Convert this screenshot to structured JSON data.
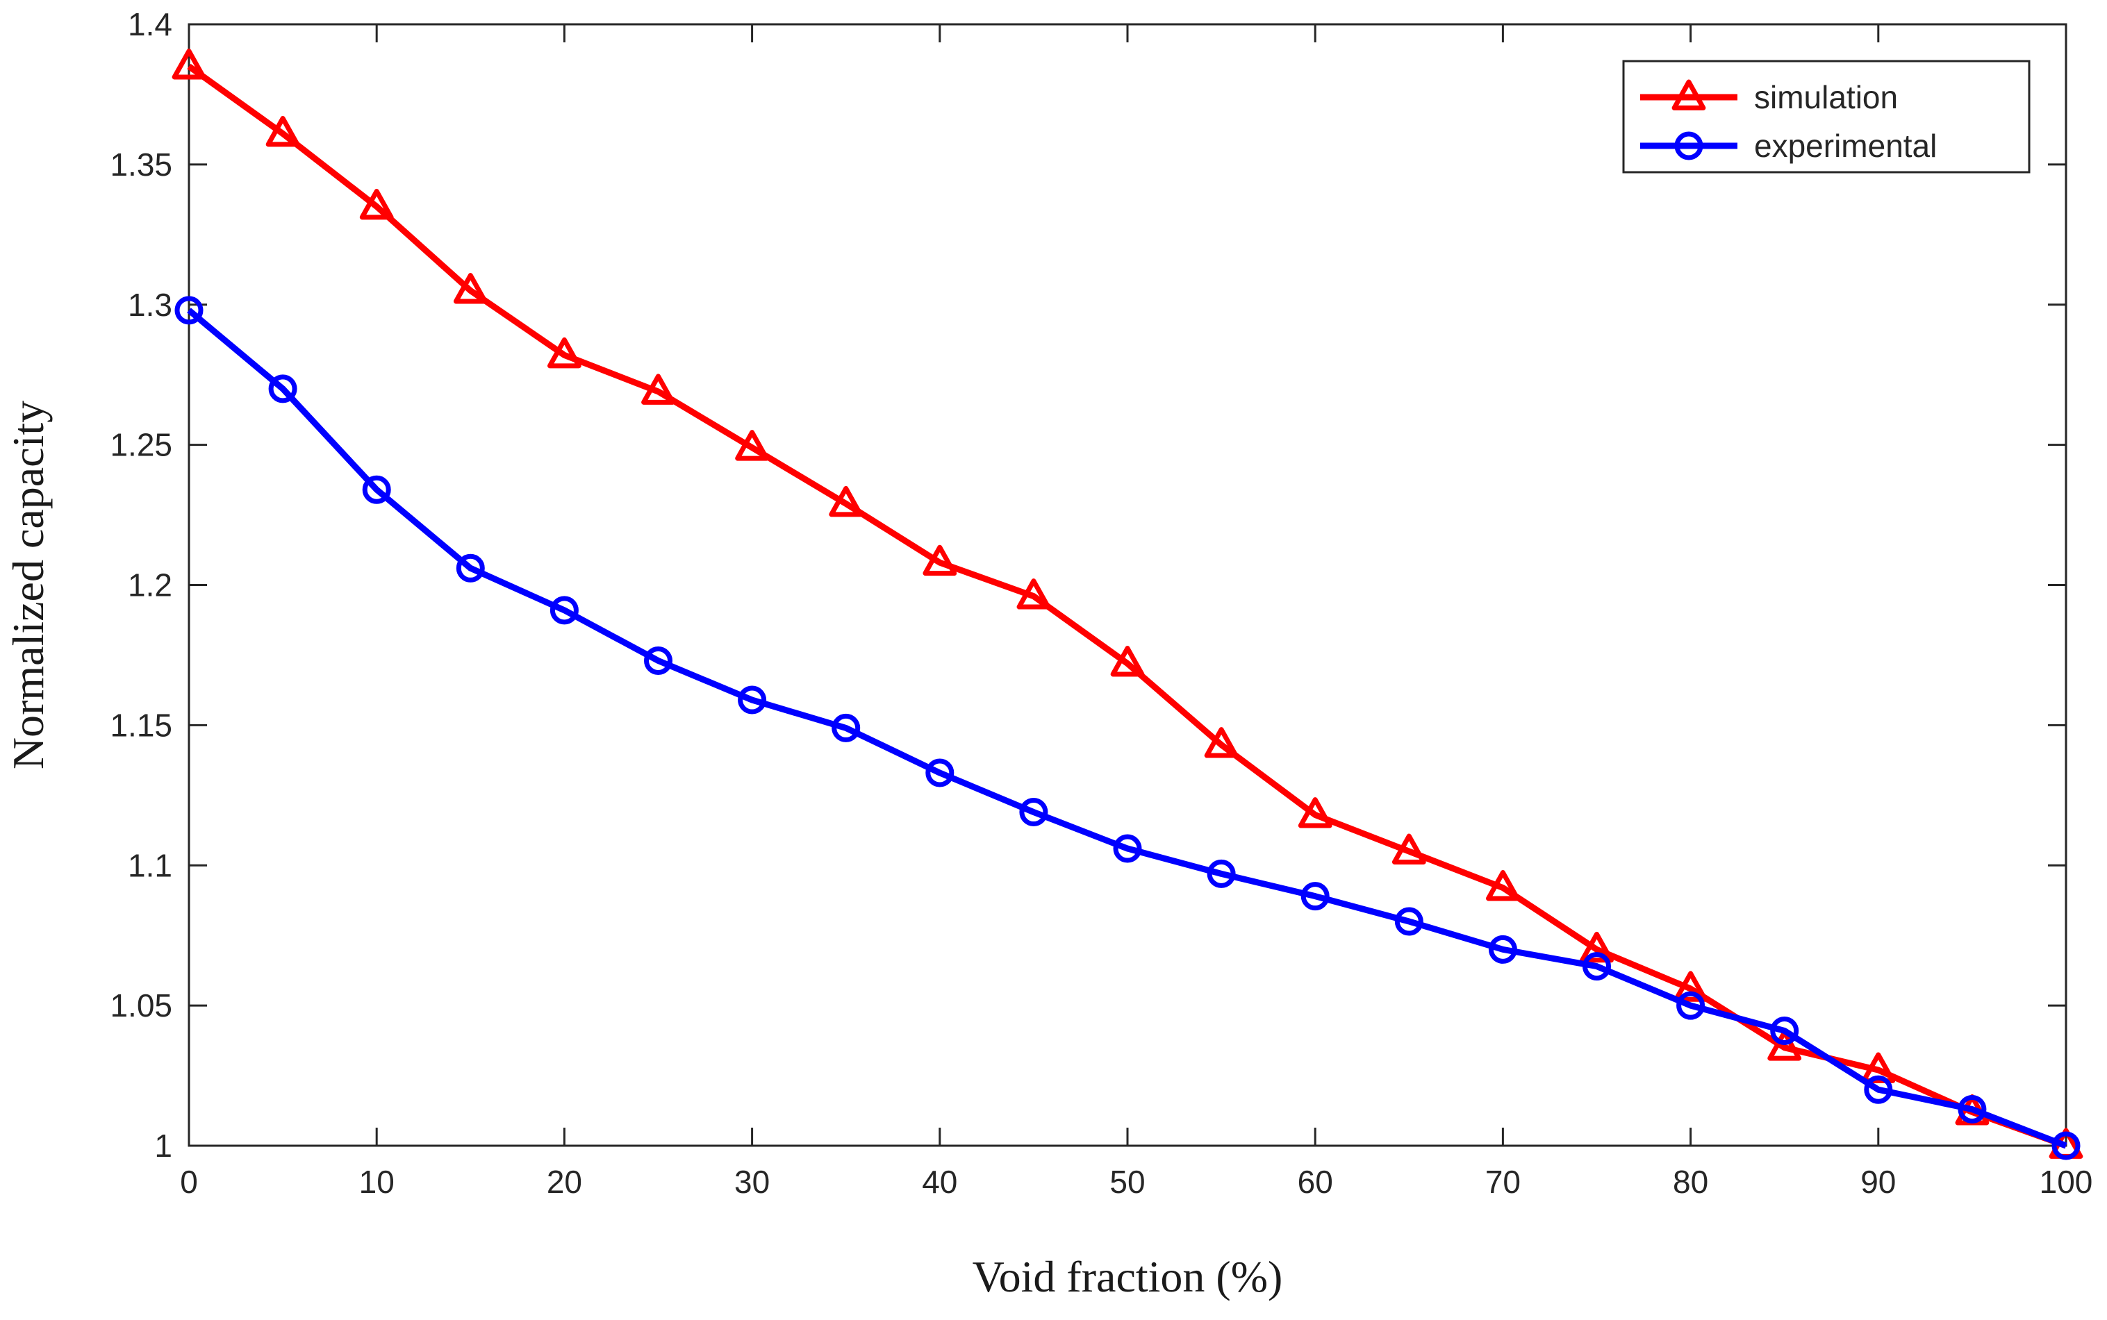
{
  "chart_data": {
    "type": "line",
    "title": "",
    "xlabel": "Void fraction (%)",
    "ylabel": "Normalized capacity",
    "xlim": [
      0,
      100
    ],
    "ylim": [
      1,
      1.4
    ],
    "xticks": [
      0,
      10,
      20,
      30,
      40,
      50,
      60,
      70,
      80,
      90,
      100
    ],
    "xtick_labels": [
      "0",
      "10",
      "20",
      "30",
      "40",
      "50",
      "60",
      "70",
      "80",
      "90",
      "100"
    ],
    "yticks": [
      1,
      1.05,
      1.1,
      1.15,
      1.2,
      1.25,
      1.3,
      1.35,
      1.4
    ],
    "ytick_labels": [
      "1",
      "1.05",
      "1.1",
      "1.15",
      "1.2",
      "1.25",
      "1.3",
      "1.35",
      "1.4"
    ],
    "grid": false,
    "legend_position": "top-right",
    "x": [
      0,
      5,
      10,
      15,
      20,
      25,
      30,
      35,
      40,
      45,
      50,
      55,
      60,
      65,
      70,
      75,
      80,
      85,
      90,
      95,
      100
    ],
    "series": [
      {
        "name": "simulation",
        "color": "#ff0000",
        "marker": "triangle",
        "values": [
          1.385,
          1.361,
          1.335,
          1.305,
          1.282,
          1.269,
          1.249,
          1.229,
          1.208,
          1.196,
          1.172,
          1.143,
          1.118,
          1.105,
          1.092,
          1.07,
          1.056,
          1.035,
          1.027,
          1.012,
          1.0
        ]
      },
      {
        "name": "experimental",
        "color": "#0000ff",
        "marker": "circle",
        "values": [
          1.298,
          1.27,
          1.234,
          1.206,
          1.191,
          1.173,
          1.159,
          1.149,
          1.133,
          1.119,
          1.106,
          1.097,
          1.089,
          1.08,
          1.07,
          1.064,
          1.05,
          1.041,
          1.02,
          1.013,
          1.0
        ]
      }
    ]
  }
}
